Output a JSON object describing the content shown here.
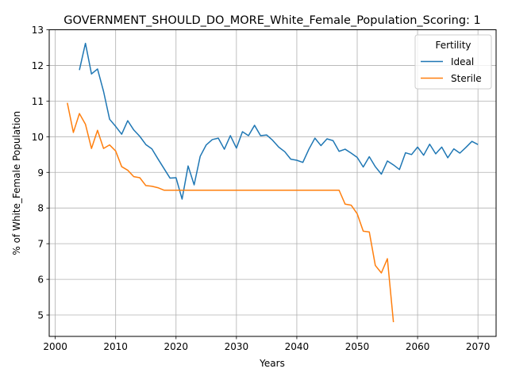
{
  "chart_data": {
    "type": "line",
    "title": "GOVERNMENT_SHOULD_DO_MORE_White_Female_Population_Scoring: 1",
    "xlabel": "Years",
    "ylabel": "% of White_Female Population",
    "xlim": [
      1999,
      2073
    ],
    "ylim": [
      4.4,
      13.0
    ],
    "xticks": [
      2000,
      2010,
      2020,
      2030,
      2040,
      2050,
      2060,
      2070
    ],
    "yticks": [
      5,
      6,
      7,
      8,
      9,
      10,
      11,
      12,
      13
    ],
    "grid": true,
    "legend": {
      "title": "Fertility",
      "placement": "top-right"
    },
    "series": [
      {
        "name": "Ideal",
        "color": "#1f77b4",
        "x": [
          2004,
          2005,
          2006,
          2007,
          2008,
          2009,
          2010,
          2011,
          2012,
          2013,
          2014,
          2015,
          2016,
          2017,
          2018,
          2019,
          2020,
          2021,
          2022,
          2023,
          2024,
          2025,
          2026,
          2027,
          2028,
          2029,
          2030,
          2031,
          2032,
          2033,
          2034,
          2035,
          2036,
          2037,
          2038,
          2039,
          2040,
          2041,
          2042,
          2043,
          2044,
          2045,
          2046,
          2047,
          2048,
          2049,
          2050,
          2051,
          2052,
          2053,
          2054,
          2055,
          2056,
          2057,
          2058,
          2059,
          2060,
          2061,
          2062,
          2063,
          2064,
          2065,
          2066,
          2067,
          2068,
          2069,
          2070
        ],
        "values": [
          11.87,
          12.62,
          11.76,
          11.9,
          11.27,
          10.49,
          10.29,
          10.07,
          10.45,
          10.19,
          10.01,
          9.78,
          9.66,
          9.38,
          9.11,
          8.84,
          8.85,
          8.25,
          9.18,
          8.65,
          9.45,
          9.77,
          9.92,
          9.96,
          9.65,
          10.03,
          9.68,
          10.14,
          10.03,
          10.32,
          10.03,
          10.05,
          9.9,
          9.71,
          9.58,
          9.37,
          9.34,
          9.28,
          9.65,
          9.96,
          9.75,
          9.94,
          9.89,
          9.59,
          9.65,
          9.54,
          9.42,
          9.15,
          9.44,
          9.16,
          8.95,
          9.32,
          9.21,
          9.08,
          9.55,
          9.5,
          9.71,
          9.48,
          9.79,
          9.52,
          9.71,
          9.41,
          9.66,
          9.54,
          9.7,
          9.87,
          9.78
        ]
      },
      {
        "name": "Sterile",
        "color": "#ff7f0e",
        "x": [
          2002,
          2003,
          2004,
          2005,
          2006,
          2007,
          2008,
          2009,
          2010,
          2011,
          2012,
          2013,
          2014,
          2015,
          2016,
          2017,
          2018,
          2019,
          2020,
          2021,
          2022,
          2023,
          2024,
          2025,
          2026,
          2027,
          2028,
          2029,
          2030,
          2031,
          2032,
          2033,
          2034,
          2035,
          2036,
          2037,
          2038,
          2039,
          2040,
          2041,
          2042,
          2043,
          2044,
          2045,
          2046,
          2047,
          2048,
          2049,
          2050,
          2051,
          2052,
          2053,
          2054,
          2055,
          2056
        ],
        "values": [
          10.95,
          10.12,
          10.65,
          10.35,
          9.67,
          10.18,
          9.67,
          9.77,
          9.6,
          9.16,
          9.06,
          8.88,
          8.85,
          8.63,
          8.61,
          8.57,
          8.5,
          8.5,
          8.5,
          8.5,
          8.5,
          8.5,
          8.5,
          8.5,
          8.5,
          8.5,
          8.5,
          8.5,
          8.5,
          8.5,
          8.5,
          8.5,
          8.5,
          8.5,
          8.5,
          8.5,
          8.5,
          8.5,
          8.5,
          8.5,
          8.5,
          8.5,
          8.5,
          8.5,
          8.5,
          8.5,
          8.11,
          8.08,
          7.84,
          7.35,
          7.33,
          6.39,
          6.18,
          6.58,
          4.8
        ]
      }
    ]
  }
}
